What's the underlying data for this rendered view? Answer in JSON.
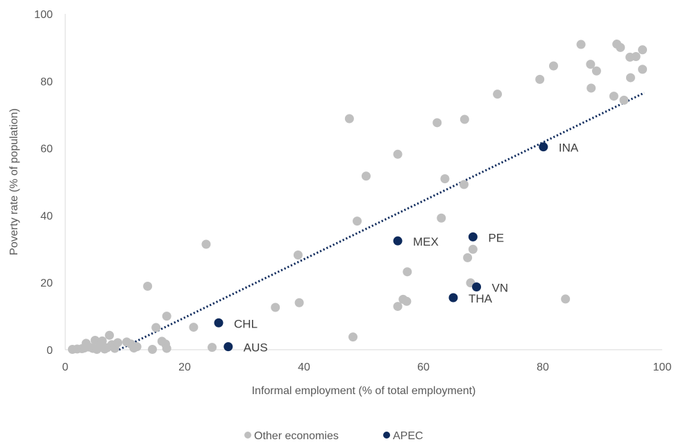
{
  "chart_data": {
    "type": "scatter",
    "title": "",
    "xlabel": "Informal employment (% of total employment)",
    "ylabel": "Poverty rate (% of population)",
    "xlim": [
      0,
      100
    ],
    "ylim": [
      0,
      100
    ],
    "xticks": [
      "0",
      "20",
      "40",
      "60",
      "80",
      "100"
    ],
    "yticks": [
      "0",
      "20",
      "40",
      "60",
      "80",
      "100"
    ],
    "grid": false,
    "legend_position": "bottom",
    "trendline": {
      "style": "dotted",
      "color": "#0d2a5c",
      "from": [
        9,
        0
      ],
      "to": [
        97,
        76.5
      ]
    },
    "series": [
      {
        "name": "Other economies",
        "color": "#bfbfbf",
        "points": [
          [
            1.2,
            0.1
          ],
          [
            2.0,
            0.2
          ],
          [
            2.8,
            0.3
          ],
          [
            3.2,
            0.5
          ],
          [
            3.5,
            1.9
          ],
          [
            4.0,
            0.8
          ],
          [
            4.6,
            0.4
          ],
          [
            5.0,
            2.8
          ],
          [
            5.3,
            0.1
          ],
          [
            5.8,
            1.2
          ],
          [
            6.2,
            2.6
          ],
          [
            6.6,
            0.2
          ],
          [
            7.0,
            0.6
          ],
          [
            7.4,
            4.3
          ],
          [
            7.8,
            1.5
          ],
          [
            8.3,
            0.4
          ],
          [
            8.8,
            2.1
          ],
          [
            10.3,
            2.3
          ],
          [
            11.0,
            1.7
          ],
          [
            11.5,
            0.5
          ],
          [
            12.0,
            0.9
          ],
          [
            13.8,
            18.9
          ],
          [
            14.6,
            0.1
          ],
          [
            15.2,
            6.6
          ],
          [
            16.2,
            2.5
          ],
          [
            16.8,
            1.7
          ],
          [
            17.0,
            0.4
          ],
          [
            17.0,
            10.0
          ],
          [
            21.5,
            6.7
          ],
          [
            23.6,
            31.4
          ],
          [
            24.6,
            0.7
          ],
          [
            35.2,
            12.6
          ],
          [
            39.0,
            28.2
          ],
          [
            39.2,
            14.0
          ],
          [
            47.6,
            68.8
          ],
          [
            48.2,
            3.8
          ],
          [
            48.9,
            38.3
          ],
          [
            50.4,
            51.7
          ],
          [
            55.7,
            58.2
          ],
          [
            55.7,
            12.9
          ],
          [
            56.6,
            15.0
          ],
          [
            57.2,
            14.4
          ],
          [
            57.3,
            23.2
          ],
          [
            62.3,
            67.6
          ],
          [
            63.0,
            39.2
          ],
          [
            63.6,
            50.9
          ],
          [
            66.8,
            49.2
          ],
          [
            66.9,
            68.6
          ],
          [
            67.4,
            27.4
          ],
          [
            67.9,
            19.9
          ],
          [
            68.3,
            29.9
          ],
          [
            72.4,
            76.1
          ],
          [
            79.5,
            80.5
          ],
          [
            81.8,
            84.5
          ],
          [
            83.8,
            15.1
          ],
          [
            86.4,
            90.9
          ],
          [
            88.0,
            85.0
          ],
          [
            88.1,
            77.9
          ],
          [
            89.0,
            83.0
          ],
          [
            91.9,
            75.5
          ],
          [
            92.4,
            91.0
          ],
          [
            93.0,
            90.0
          ],
          [
            93.6,
            74.3
          ],
          [
            94.6,
            87.1
          ],
          [
            94.7,
            81.0
          ],
          [
            95.6,
            87.3
          ],
          [
            96.7,
            89.3
          ],
          [
            96.7,
            83.5
          ]
        ]
      },
      {
        "name": "APEC",
        "color": "#0d2a5c",
        "points": [
          [
            25.7,
            8.0,
            "CHL"
          ],
          [
            27.3,
            0.9,
            "AUS"
          ],
          [
            55.7,
            32.4,
            "MEX"
          ],
          [
            68.3,
            33.6,
            "PE"
          ],
          [
            65.0,
            15.5,
            "THA"
          ],
          [
            68.9,
            18.7,
            "VN"
          ],
          [
            80.1,
            60.4,
            "INA"
          ]
        ]
      }
    ]
  }
}
